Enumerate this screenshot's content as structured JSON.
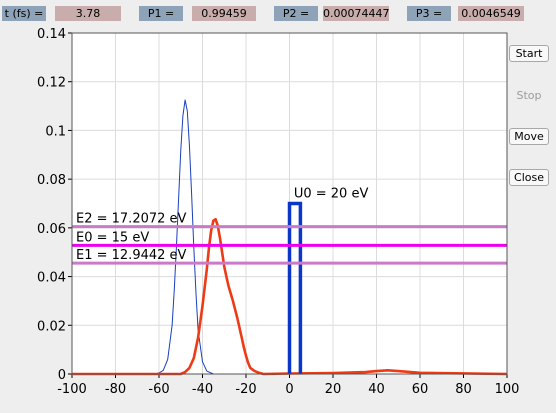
{
  "stats": [
    {
      "label": "t (fs) =",
      "value": "3.78"
    },
    {
      "label": "P1 =",
      "value": "0.99459"
    },
    {
      "label": "P2 =",
      "value": "0.00074447"
    },
    {
      "label": "P3 =",
      "value": "0.0046549"
    }
  ],
  "buttons": {
    "start": "Start",
    "stop": "Stop",
    "move": "Move",
    "close": "Close"
  },
  "colors": {
    "stat_label_bg": "#8fa3b8",
    "stat_value_bg": "#c9adad",
    "thin_curve": "#1a3fbf",
    "thick_curve": "#ee3a16",
    "barrier": "#0c36c8",
    "energy_outer": "#c97bc9",
    "energy_center": "#ee00ee"
  },
  "chart_data": {
    "type": "line",
    "xlim": [
      -100,
      100
    ],
    "ylim": [
      0,
      0.14
    ],
    "xticks": [
      "-100",
      "-80",
      "-60",
      "-40",
      "-20",
      "0",
      "20",
      "40",
      "60",
      "80",
      "100"
    ],
    "yticks": [
      "0",
      "0.02",
      "0.04",
      "0.06",
      "0.08",
      "0.1",
      "0.12",
      "0.14"
    ],
    "grid": true,
    "series": [
      {
        "style": "thin-blue",
        "x": [
          -100,
          -62,
          -60,
          -58,
          -56,
          -54,
          -53,
          -52,
          -51,
          -50,
          -49,
          -48,
          -47,
          -46,
          -45,
          -44,
          -43,
          -42,
          -40,
          -38,
          -35,
          100
        ],
        "y": [
          0,
          0,
          0.0004,
          0.0015,
          0.006,
          0.02,
          0.034,
          0.052,
          0.072,
          0.092,
          0.106,
          0.1125,
          0.108,
          0.094,
          0.074,
          0.052,
          0.033,
          0.018,
          0.005,
          0.0012,
          0,
          0
        ]
      },
      {
        "style": "thick-red",
        "x": [
          -100,
          -50,
          -48,
          -46,
          -44,
          -42,
          -40,
          -38,
          -37,
          -36,
          -35,
          -34,
          -33,
          -32,
          -31,
          -30,
          -29,
          -28,
          -26,
          -24,
          -22,
          -21,
          -20,
          -19,
          -18,
          -16,
          -14,
          -12,
          0,
          20,
          35,
          40,
          45,
          50,
          60,
          100
        ],
        "y": [
          0,
          0,
          0.0008,
          0.0025,
          0.0065,
          0.015,
          0.028,
          0.043,
          0.052,
          0.059,
          0.063,
          0.0635,
          0.061,
          0.056,
          0.05,
          0.044,
          0.04,
          0.036,
          0.03,
          0.023,
          0.015,
          0.011,
          0.0075,
          0.0045,
          0.0025,
          0.0012,
          0.0005,
          0,
          0.0002,
          0.0004,
          0.0008,
          0.0012,
          0.0015,
          0.0012,
          0.0005,
          0
        ]
      }
    ],
    "barrier": {
      "x": [
        0,
        0,
        5,
        5
      ],
      "y": [
        0,
        0.07,
        0.07,
        0
      ],
      "label": "U0 = 20 eV",
      "label_x": 2,
      "label_y": 0.0725
    },
    "energy_lines": [
      {
        "label": "E2 = 17.2072 eV",
        "y": 0.0605,
        "style": "outer"
      },
      {
        "label": "E0 = 15 eV",
        "y": 0.0528,
        "style": "center"
      },
      {
        "label": "E1 = 12.9442 eV",
        "y": 0.0455,
        "style": "outer"
      }
    ]
  }
}
